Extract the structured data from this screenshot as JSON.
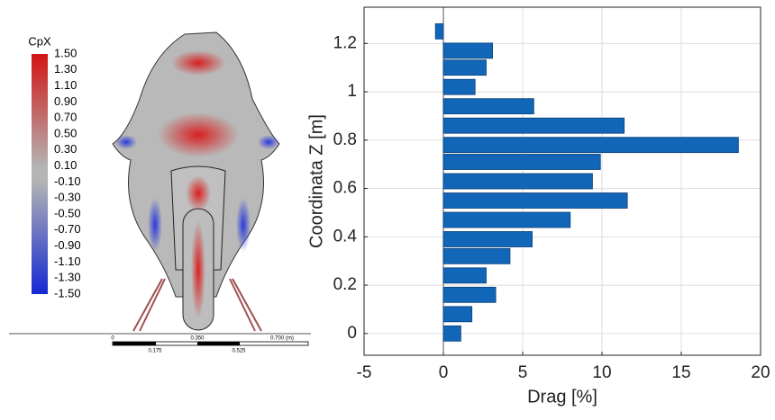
{
  "contour_plot": {
    "colorbar_title": "CpX",
    "clim": [
      -1.5,
      1.5
    ],
    "colorbar_ticks": [
      {
        "value": 1.5,
        "label": "1.50"
      },
      {
        "value": 1.3,
        "label": "1.30"
      },
      {
        "value": 1.1,
        "label": "1.10"
      },
      {
        "value": 0.9,
        "label": "0.90"
      },
      {
        "value": 0.7,
        "label": "0.70"
      },
      {
        "value": 0.5,
        "label": "0.50"
      },
      {
        "value": 0.3,
        "label": "0.30"
      },
      {
        "value": 0.1,
        "label": "0.10"
      },
      {
        "value": -0.1,
        "label": "-0.10"
      },
      {
        "value": -0.3,
        "label": "-0.30"
      },
      {
        "value": -0.5,
        "label": "-0.50"
      },
      {
        "value": -0.7,
        "label": "-0.70"
      },
      {
        "value": -0.9,
        "label": "-0.90"
      },
      {
        "value": -1.1,
        "label": "-1.10"
      },
      {
        "value": -1.3,
        "label": "-1.30"
      },
      {
        "value": -1.5,
        "label": "-1.50"
      }
    ],
    "scale_labels_top": [
      "0",
      "0.350",
      "0.700 (m)"
    ],
    "scale_labels_bottom": [
      "0.175",
      "0.525"
    ]
  },
  "chart_data": {
    "type": "hbar",
    "x_label": "Drag [%]",
    "y_label": "Coordinata Z [m]",
    "y": [
      0,
      0.08,
      0.16,
      0.24,
      0.32,
      0.39,
      0.47,
      0.55,
      0.63,
      0.71,
      0.78,
      0.86,
      0.94,
      1.02,
      1.1,
      1.17,
      1.25
    ],
    "values": [
      1.1,
      1.8,
      3.3,
      2.7,
      4.2,
      5.6,
      8.0,
      11.6,
      9.4,
      9.9,
      18.6,
      11.4,
      5.7,
      2.0,
      2.7,
      3.1,
      -0.5
    ],
    "color": "#1266b8",
    "xlim": [
      -5,
      20
    ],
    "xticks": [
      -5,
      0,
      5,
      10,
      15,
      20
    ],
    "ylim": [
      -0.09,
      1.35
    ],
    "yticks": [
      0,
      0.2,
      0.4,
      0.6,
      0.8,
      1,
      1.2
    ],
    "grid": true
  }
}
